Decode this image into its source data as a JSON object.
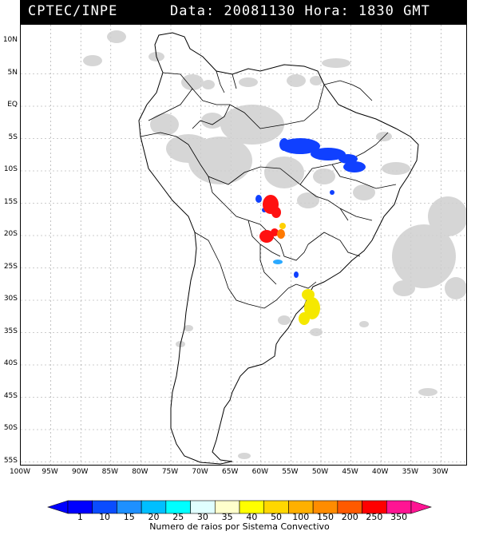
{
  "header": {
    "source": "CPTEC/INPE",
    "datetime": "Data: 20081130 Hora: 1830 GMT"
  },
  "latitudes": [
    "10N",
    "5N",
    "EQ",
    "5S",
    "10S",
    "15S",
    "20S",
    "25S",
    "30S",
    "35S",
    "40S",
    "45S",
    "50S",
    "55S"
  ],
  "longitudes": [
    "100W",
    "95W",
    "90W",
    "85W",
    "80W",
    "75W",
    "70W",
    "65W",
    "60W",
    "55W",
    "50W",
    "45W",
    "40W",
    "35W",
    "30W"
  ],
  "legend": {
    "values": [
      "1",
      "10",
      "15",
      "20",
      "25",
      "30",
      "35",
      "40",
      "50",
      "100",
      "150",
      "200",
      "250",
      "350"
    ],
    "colors": [
      "#0000ff",
      "#0a4cff",
      "#1e90ff",
      "#00bfff",
      "#00ffff",
      "#e0ffff",
      "#ffffcc",
      "#ffff00",
      "#ffd700",
      "#ffb000",
      "#ff8c00",
      "#ff5a00",
      "#ff0000",
      "#ff1493"
    ],
    "title": "Numero de raios por Sistema Convectivo"
  },
  "colors": {
    "background": "#ffffff",
    "header_bg": "#000000",
    "header_text": "#ffffff",
    "cloud": "#c8c8c8"
  }
}
